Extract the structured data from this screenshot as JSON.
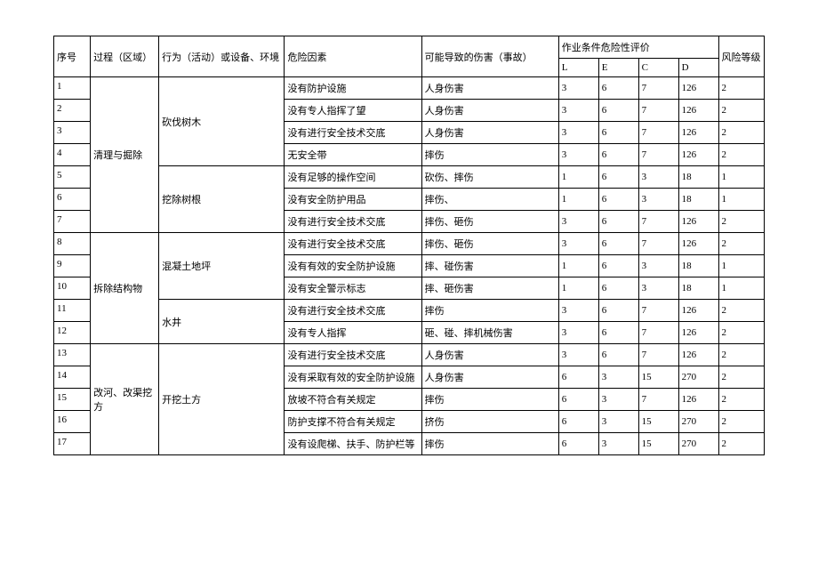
{
  "headers": {
    "seq": "序号",
    "process": "过程（区域）",
    "activity": "行为（活动）或设备、环境",
    "hazard": "危险因素",
    "harm": "可能导致的伤害（事故）",
    "evaluation": "作业条件危险性评价",
    "l": "L",
    "e": "E",
    "c": "C",
    "d": "D",
    "risk": "风险等级"
  },
  "process1": "清理与掘除",
  "process2": "拆除结构物",
  "process3": "改河、改渠挖方",
  "activity1": "砍伐树木",
  "activity2": "挖除树根",
  "activity3": "混凝土地坪",
  "activity4": "水井",
  "activity5": "开挖土方",
  "rows": [
    {
      "seq": "1",
      "hazard": "没有防护设施",
      "harm": "人身伤害",
      "l": "3",
      "e": "6",
      "c": "7",
      "d": "126",
      "risk": "2"
    },
    {
      "seq": "2",
      "hazard": "没有专人指挥了望",
      "harm": "人身伤害",
      "l": "3",
      "e": "6",
      "c": "7",
      "d": "126",
      "risk": "2"
    },
    {
      "seq": "3",
      "hazard": "没有进行安全技术交底",
      "harm": "人身伤害",
      "l": "3",
      "e": "6",
      "c": "7",
      "d": "126",
      "risk": "2"
    },
    {
      "seq": "4",
      "hazard": "无安全带",
      "harm": "摔伤",
      "l": "3",
      "e": "6",
      "c": "7",
      "d": "126",
      "risk": "2"
    },
    {
      "seq": "5",
      "hazard": "没有足够的操作空间",
      "harm": "砍伤、摔伤",
      "l": "1",
      "e": "6",
      "c": "3",
      "d": "18",
      "risk": "1"
    },
    {
      "seq": "6",
      "hazard": "没有安全防护用品",
      "harm": "摔伤、",
      "l": "1",
      "e": "6",
      "c": "3",
      "d": "18",
      "risk": "1"
    },
    {
      "seq": "7",
      "hazard": "没有进行安全技术交底",
      "harm": "摔伤、砸伤",
      "l": "3",
      "e": "6",
      "c": "7",
      "d": "126",
      "risk": "2"
    },
    {
      "seq": "8",
      "hazard": "没有进行安全技术交底",
      "harm": "摔伤、砸伤",
      "l": "3",
      "e": "6",
      "c": "7",
      "d": "126",
      "risk": "2"
    },
    {
      "seq": "9",
      "hazard": "没有有效的安全防护设施",
      "harm": "摔、碰伤害",
      "l": "1",
      "e": "6",
      "c": "3",
      "d": "18",
      "risk": "1"
    },
    {
      "seq": "10",
      "hazard": "没有安全警示标志",
      "harm": "摔、砸伤害",
      "l": "1",
      "e": "6",
      "c": "3",
      "d": "18",
      "risk": "1"
    },
    {
      "seq": "11",
      "hazard": "没有进行安全技术交底",
      "harm": "摔伤",
      "l": "3",
      "e": "6",
      "c": "7",
      "d": "126",
      "risk": "2"
    },
    {
      "seq": "12",
      "hazard": "没有专人指挥",
      "harm": "砸、碰、摔机械伤害",
      "l": "3",
      "e": "6",
      "c": "7",
      "d": "126",
      "risk": "2"
    },
    {
      "seq": "13",
      "hazard": "没有进行安全技术交底",
      "harm": "人身伤害",
      "l": "3",
      "e": "6",
      "c": "7",
      "d": "126",
      "risk": "2"
    },
    {
      "seq": "14",
      "hazard": "没有采取有效的安全防护设施",
      "harm": "人身伤害",
      "l": "6",
      "e": "3",
      "c": "15",
      "d": "270",
      "risk": "2"
    },
    {
      "seq": "15",
      "hazard": "放坡不符合有关规定",
      "harm": "摔伤",
      "l": "6",
      "e": "3",
      "c": "7",
      "d": "126",
      "risk": "2"
    },
    {
      "seq": "16",
      "hazard": "防护支撑不符合有关规定",
      "harm": "挤伤",
      "l": "6",
      "e": "3",
      "c": "15",
      "d": "270",
      "risk": "2"
    },
    {
      "seq": "17",
      "hazard": "没有设爬梯、扶手、防护栏等",
      "harm": "摔伤",
      "l": "6",
      "e": "3",
      "c": "15",
      "d": "270",
      "risk": "2"
    }
  ]
}
